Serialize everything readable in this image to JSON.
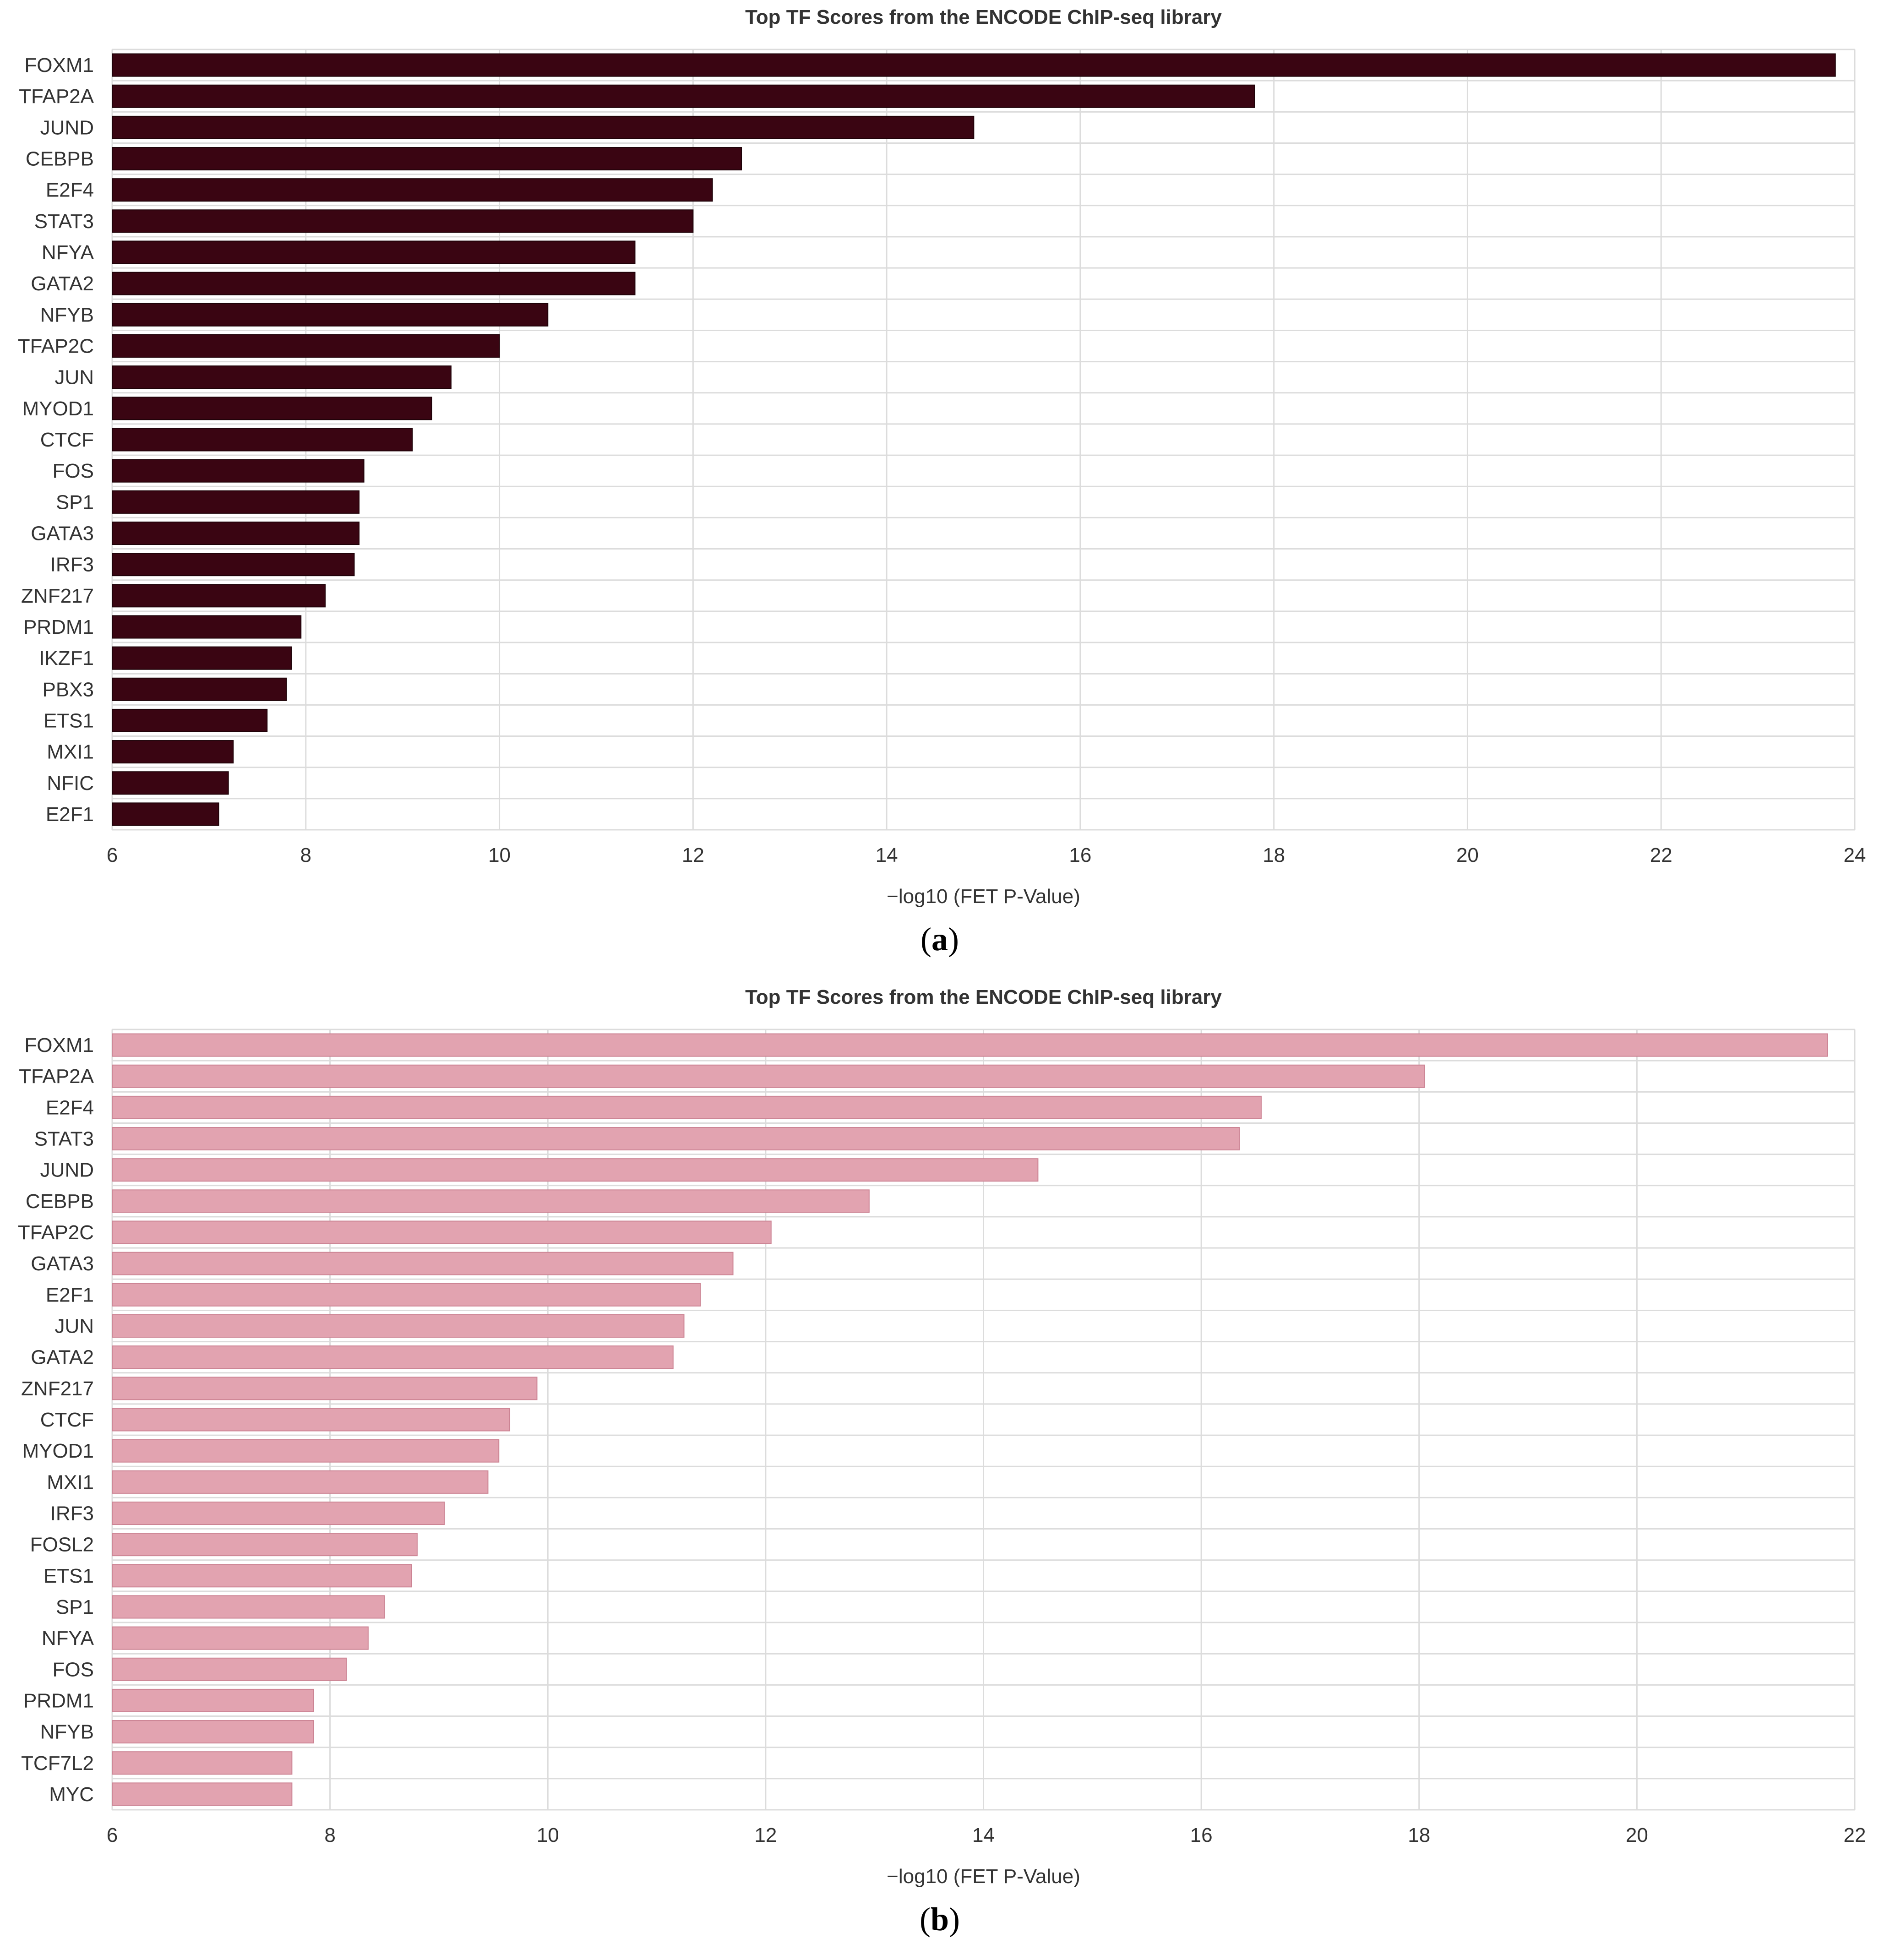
{
  "panels": [
    {
      "label_open": "(",
      "letter": "a",
      "label_close": ")"
    },
    {
      "label_open": "(",
      "letter": "b",
      "label_close": ")"
    }
  ],
  "chart_data": [
    {
      "type": "bar",
      "orientation": "horizontal",
      "title": "Top TF Scores from the ENCODE ChIP-seq library",
      "xlabel": "−log10 (FET P-Value)",
      "ylabel": "",
      "xlim": [
        6,
        24
      ],
      "xticks": [
        6,
        8,
        10,
        12,
        14,
        16,
        18,
        20,
        22,
        24
      ],
      "grid": true,
      "bar_color": "#3a0512",
      "bar_edge_color": "#1e0208",
      "categories": [
        "FOXM1",
        "TFAP2A",
        "JUND",
        "CEBPB",
        "E2F4",
        "STAT3",
        "NFYA",
        "GATA2",
        "NFYB",
        "TFAP2C",
        "JUN",
        "MYOD1",
        "CTCF",
        "FOS",
        "SP1",
        "GATA3",
        "IRF3",
        "ZNF217",
        "PRDM1",
        "IKZF1",
        "PBX3",
        "ETS1",
        "MXI1",
        "NFIC",
        "E2F1"
      ],
      "values": [
        23.8,
        17.8,
        14.9,
        12.5,
        12.2,
        12.0,
        11.4,
        11.4,
        10.5,
        10.0,
        9.5,
        9.3,
        9.1,
        8.6,
        8.55,
        8.55,
        8.5,
        8.2,
        7.95,
        7.85,
        7.8,
        7.6,
        7.25,
        7.2,
        7.1
      ]
    },
    {
      "type": "bar",
      "orientation": "horizontal",
      "title": "Top TF Scores from the ENCODE ChIP-seq library",
      "xlabel": "−log10 (FET P-Value)",
      "ylabel": "",
      "xlim": [
        6,
        22
      ],
      "xticks": [
        6,
        8,
        10,
        12,
        14,
        16,
        18,
        20,
        22
      ],
      "grid": true,
      "bar_color": "#e2a3b0",
      "bar_edge_color": "#cc8494",
      "categories": [
        "FOXM1",
        "TFAP2A",
        "E2F4",
        "STAT3",
        "JUND",
        "CEBPB",
        "TFAP2C",
        "GATA3",
        "E2F1",
        "JUN",
        "GATA2",
        "ZNF217",
        "CTCF",
        "MYOD1",
        "MXI1",
        "IRF3",
        "FOSL2",
        "ETS1",
        "SP1",
        "NFYA",
        "FOS",
        "PRDM1",
        "NFYB",
        "TCF7L2",
        "MYC"
      ],
      "values": [
        21.75,
        18.05,
        16.55,
        16.35,
        14.5,
        12.95,
        12.05,
        11.7,
        11.4,
        11.25,
        11.15,
        9.9,
        9.65,
        9.55,
        9.45,
        9.05,
        8.8,
        8.75,
        8.5,
        8.35,
        8.15,
        7.85,
        7.85,
        7.65,
        7.65
      ]
    }
  ]
}
